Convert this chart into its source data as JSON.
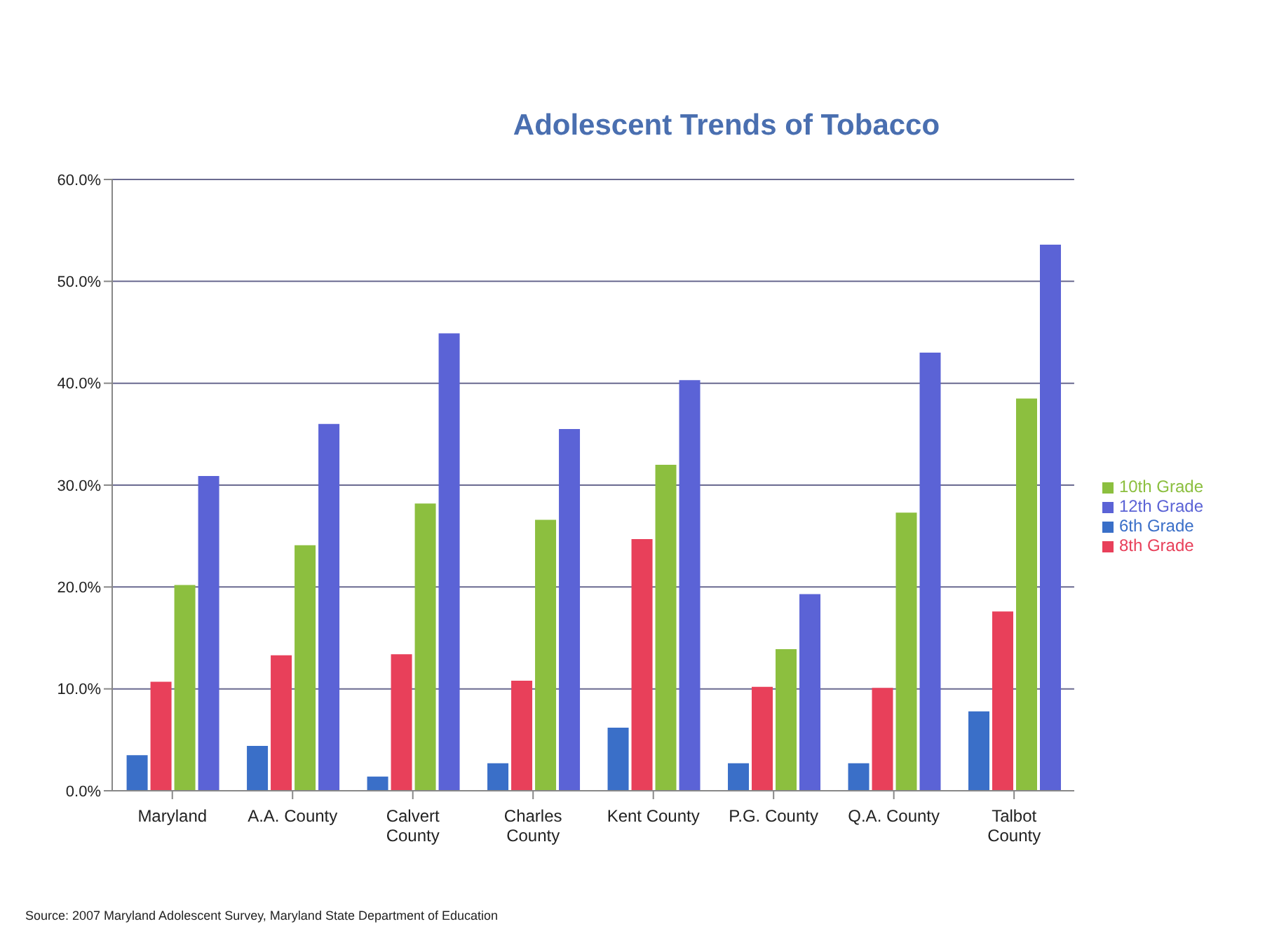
{
  "chart_data": {
    "type": "bar",
    "title": "Adolescent Trends of Tobacco",
    "categories": [
      "Maryland",
      "A.A. County",
      "Calvert County",
      "Charles County",
      "Kent County",
      "P.G. County",
      "Q.A. County",
      "Talbot County"
    ],
    "series": [
      {
        "name": "6th Grade",
        "color": "#3a6fc8",
        "values": [
          3.5,
          4.4,
          1.4,
          2.7,
          6.2,
          2.7,
          2.7,
          7.8
        ]
      },
      {
        "name": "8th Grade",
        "color": "#e8405a",
        "values": [
          10.7,
          13.3,
          13.4,
          10.8,
          24.7,
          10.2,
          10.1,
          17.6
        ]
      },
      {
        "name": "10th Grade",
        "color": "#8cbf3f",
        "values": [
          20.2,
          24.1,
          28.2,
          26.6,
          32.0,
          13.9,
          27.3,
          38.5
        ]
      },
      {
        "name": "12th Grade",
        "color": "#5b63d6",
        "values": [
          30.9,
          36.0,
          44.9,
          35.5,
          40.3,
          19.3,
          43.0,
          53.6
        ]
      }
    ],
    "ylim": [
      0,
      60
    ],
    "yticks": [
      {
        "value": 0,
        "label": "0.0%"
      },
      {
        "value": 10,
        "label": "10.0%"
      },
      {
        "value": 20,
        "label": "20.0%"
      },
      {
        "value": 30,
        "label": "30.0%"
      },
      {
        "value": 40,
        "label": "40.0%"
      },
      {
        "value": 50,
        "label": "50.0%"
      },
      {
        "value": 60,
        "label": "60.0%"
      }
    ],
    "grid": "y",
    "legend": "right",
    "annotations": [
      "Source:  2007 Maryland Adolescent Survey, Maryland State Department of Education"
    ]
  }
}
